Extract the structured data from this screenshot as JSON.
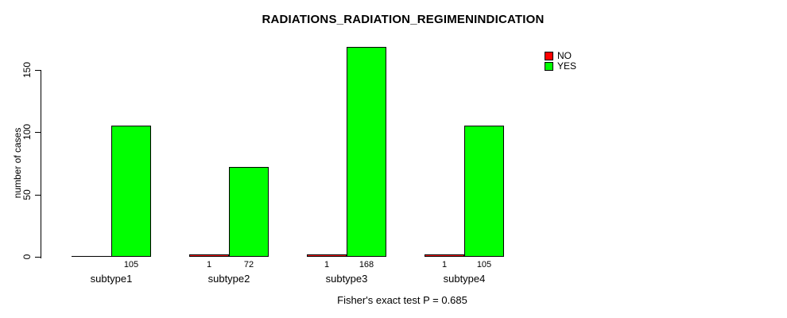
{
  "chart_data": {
    "type": "bar",
    "title": "RADIATIONS_RADIATION_REGIMENINDICATION",
    "ylabel": "number of cases",
    "xlabel": "Fisher's exact test P = 0.685",
    "categories": [
      "subtype1",
      "subtype2",
      "subtype3",
      "subtype4"
    ],
    "series": [
      {
        "name": "NO",
        "color": "#FF0000",
        "values": [
          0,
          1,
          1,
          1
        ],
        "value_labels": [
          "",
          "1",
          "1",
          "1"
        ]
      },
      {
        "name": "YES",
        "color": "#00FF00",
        "values": [
          105,
          72,
          168,
          105
        ],
        "value_labels": [
          "105",
          "72",
          "168",
          "105"
        ]
      }
    ],
    "yticks": [
      0,
      50,
      100,
      150
    ],
    "ylim": [
      0,
      172
    ],
    "grid": false,
    "legend_position": "top-right",
    "axis_color": "#000000",
    "background_color": "#FFFFFF"
  }
}
